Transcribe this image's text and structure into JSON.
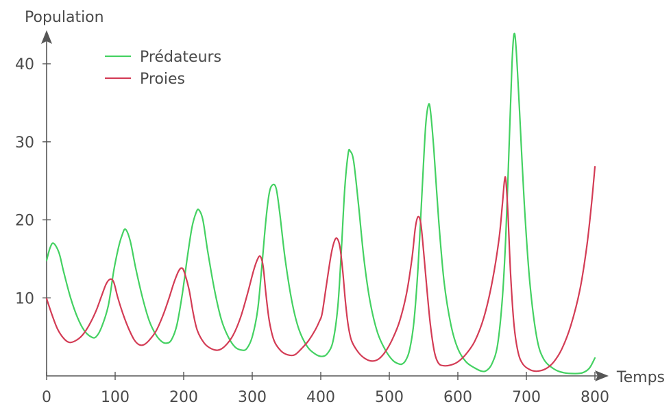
{
  "chart_data": {
    "type": "line",
    "title": "",
    "xlabel": "Temps",
    "ylabel": "Population",
    "xlim": [
      0,
      800
    ],
    "ylim": [
      0,
      45
    ],
    "xticks": [
      0,
      100,
      200,
      300,
      400,
      500,
      600,
      700,
      800
    ],
    "xtick_labels": [
      "0",
      "100",
      "200",
      "300",
      "400",
      "500",
      "600",
      "700",
      "800"
    ],
    "yticks": [
      10,
      20,
      30,
      40
    ],
    "ytick_labels": [
      "10",
      "20",
      "30",
      "40"
    ],
    "grid": false,
    "legend_position": "top-left",
    "series": [
      {
        "name": "Prédateurs",
        "color": "#44d162",
        "points": [
          [
            0,
            14.8
          ],
          [
            5,
            16.4
          ],
          [
            10,
            17.0
          ],
          [
            18,
            15.8
          ],
          [
            25,
            13.3
          ],
          [
            35,
            10.0
          ],
          [
            45,
            7.5
          ],
          [
            55,
            5.8
          ],
          [
            65,
            5.0
          ],
          [
            72,
            5.0
          ],
          [
            80,
            6.2
          ],
          [
            90,
            9.0
          ],
          [
            98,
            13.5
          ],
          [
            105,
            16.5
          ],
          [
            110,
            18.0
          ],
          [
            115,
            18.8
          ],
          [
            122,
            17.3
          ],
          [
            130,
            13.8
          ],
          [
            140,
            10.0
          ],
          [
            150,
            7.0
          ],
          [
            160,
            5.2
          ],
          [
            168,
            4.4
          ],
          [
            175,
            4.2
          ],
          [
            182,
            4.6
          ],
          [
            190,
            6.5
          ],
          [
            198,
            10.5
          ],
          [
            205,
            15.0
          ],
          [
            212,
            19.0
          ],
          [
            218,
            20.9
          ],
          [
            222,
            21.3
          ],
          [
            228,
            20.0
          ],
          [
            235,
            16.0
          ],
          [
            245,
            11.0
          ],
          [
            255,
            7.2
          ],
          [
            265,
            5.0
          ],
          [
            275,
            3.7
          ],
          [
            285,
            3.3
          ],
          [
            292,
            3.5
          ],
          [
            300,
            5.0
          ],
          [
            308,
            8.5
          ],
          [
            314,
            14.0
          ],
          [
            320,
            20.0
          ],
          [
            325,
            23.5
          ],
          [
            330,
            24.5
          ],
          [
            335,
            24.0
          ],
          [
            340,
            21.0
          ],
          [
            348,
            15.0
          ],
          [
            358,
            9.5
          ],
          [
            368,
            6.0
          ],
          [
            380,
            3.8
          ],
          [
            392,
            2.8
          ],
          [
            402,
            2.5
          ],
          [
            410,
            2.9
          ],
          [
            418,
            4.5
          ],
          [
            425,
            9.0
          ],
          [
            430,
            16.0
          ],
          [
            435,
            24.0
          ],
          [
            440,
            28.5
          ],
          [
            443,
            28.8
          ],
          [
            448,
            27.5
          ],
          [
            455,
            22.0
          ],
          [
            463,
            15.0
          ],
          [
            472,
            9.5
          ],
          [
            483,
            5.5
          ],
          [
            495,
            3.2
          ],
          [
            505,
            2.0
          ],
          [
            512,
            1.6
          ],
          [
            518,
            1.5
          ],
          [
            524,
            2.0
          ],
          [
            530,
            3.5
          ],
          [
            536,
            7.0
          ],
          [
            542,
            14.0
          ],
          [
            548,
            24.0
          ],
          [
            553,
            32.0
          ],
          [
            557,
            34.7
          ],
          [
            560,
            34.0
          ],
          [
            565,
            29.0
          ],
          [
            572,
            20.0
          ],
          [
            580,
            12.0
          ],
          [
            590,
            6.5
          ],
          [
            600,
            3.5
          ],
          [
            612,
            1.8
          ],
          [
            625,
            1.0
          ],
          [
            635,
            0.6
          ],
          [
            642,
            0.7
          ],
          [
            650,
            1.6
          ],
          [
            658,
            4.0
          ],
          [
            665,
            10.0
          ],
          [
            670,
            18.0
          ],
          [
            675,
            30.0
          ],
          [
            679,
            40.0
          ],
          [
            682,
            43.8
          ],
          [
            685,
            42.0
          ],
          [
            690,
            34.0
          ],
          [
            697,
            22.0
          ],
          [
            705,
            12.0
          ],
          [
            715,
            5.0
          ],
          [
            725,
            2.2
          ],
          [
            740,
            0.9
          ],
          [
            755,
            0.4
          ],
          [
            770,
            0.3
          ],
          [
            782,
            0.4
          ],
          [
            792,
            1.0
          ],
          [
            800,
            2.3
          ]
        ]
      },
      {
        "name": "Proies",
        "color": "#d33c55",
        "points": [
          [
            0,
            9.9
          ],
          [
            8,
            7.8
          ],
          [
            16,
            6.0
          ],
          [
            25,
            4.8
          ],
          [
            33,
            4.3
          ],
          [
            42,
            4.5
          ],
          [
            52,
            5.2
          ],
          [
            62,
            6.5
          ],
          [
            72,
            8.3
          ],
          [
            80,
            10.2
          ],
          [
            87,
            11.8
          ],
          [
            93,
            12.4
          ],
          [
            98,
            12.0
          ],
          [
            104,
            10.0
          ],
          [
            112,
            7.8
          ],
          [
            120,
            6.0
          ],
          [
            128,
            4.6
          ],
          [
            135,
            4.0
          ],
          [
            142,
            4.0
          ],
          [
            150,
            4.6
          ],
          [
            160,
            5.8
          ],
          [
            170,
            7.8
          ],
          [
            178,
            9.8
          ],
          [
            186,
            12.0
          ],
          [
            193,
            13.5
          ],
          [
            198,
            13.8
          ],
          [
            202,
            13.0
          ],
          [
            208,
            11.0
          ],
          [
            214,
            8.0
          ],
          [
            220,
            5.8
          ],
          [
            230,
            4.2
          ],
          [
            240,
            3.5
          ],
          [
            250,
            3.3
          ],
          [
            260,
            3.8
          ],
          [
            272,
            5.2
          ],
          [
            283,
            7.5
          ],
          [
            293,
            10.5
          ],
          [
            302,
            13.5
          ],
          [
            308,
            15.0
          ],
          [
            312,
            15.3
          ],
          [
            316,
            14.0
          ],
          [
            320,
            10.5
          ],
          [
            325,
            7.0
          ],
          [
            332,
            4.5
          ],
          [
            342,
            3.2
          ],
          [
            352,
            2.7
          ],
          [
            362,
            2.7
          ],
          [
            372,
            3.5
          ],
          [
            382,
            4.5
          ],
          [
            392,
            5.9
          ],
          [
            398,
            7.0
          ],
          [
            402,
            8.0
          ],
          [
            408,
            11.5
          ],
          [
            415,
            15.5
          ],
          [
            420,
            17.3
          ],
          [
            424,
            17.6
          ],
          [
            428,
            16.5
          ],
          [
            432,
            13.5
          ],
          [
            436,
            9.5
          ],
          [
            440,
            6.5
          ],
          [
            445,
            4.5
          ],
          [
            455,
            3.0
          ],
          [
            465,
            2.2
          ],
          [
            475,
            1.9
          ],
          [
            485,
            2.2
          ],
          [
            495,
            3.2
          ],
          [
            505,
            4.8
          ],
          [
            515,
            7.0
          ],
          [
            525,
            10.5
          ],
          [
            533,
            15.0
          ],
          [
            538,
            19.0
          ],
          [
            542,
            20.4
          ],
          [
            546,
            19.5
          ],
          [
            550,
            16.0
          ],
          [
            555,
            11.0
          ],
          [
            560,
            6.5
          ],
          [
            566,
            3.0
          ],
          [
            572,
            1.6
          ],
          [
            580,
            1.3
          ],
          [
            590,
            1.4
          ],
          [
            600,
            1.8
          ],
          [
            612,
            2.8
          ],
          [
            625,
            4.5
          ],
          [
            638,
            7.5
          ],
          [
            650,
            12.0
          ],
          [
            660,
            17.5
          ],
          [
            665,
            22.0
          ],
          [
            668,
            25.0
          ],
          [
            670,
            25.1
          ],
          [
            673,
            21.0
          ],
          [
            677,
            13.0
          ],
          [
            682,
            6.5
          ],
          [
            688,
            3.0
          ],
          [
            695,
            1.5
          ],
          [
            705,
            0.8
          ],
          [
            715,
            0.6
          ],
          [
            728,
            0.9
          ],
          [
            740,
            1.8
          ],
          [
            752,
            3.5
          ],
          [
            765,
            6.5
          ],
          [
            778,
            11.0
          ],
          [
            788,
            16.5
          ],
          [
            795,
            22.0
          ],
          [
            800,
            26.8
          ]
        ]
      }
    ]
  }
}
